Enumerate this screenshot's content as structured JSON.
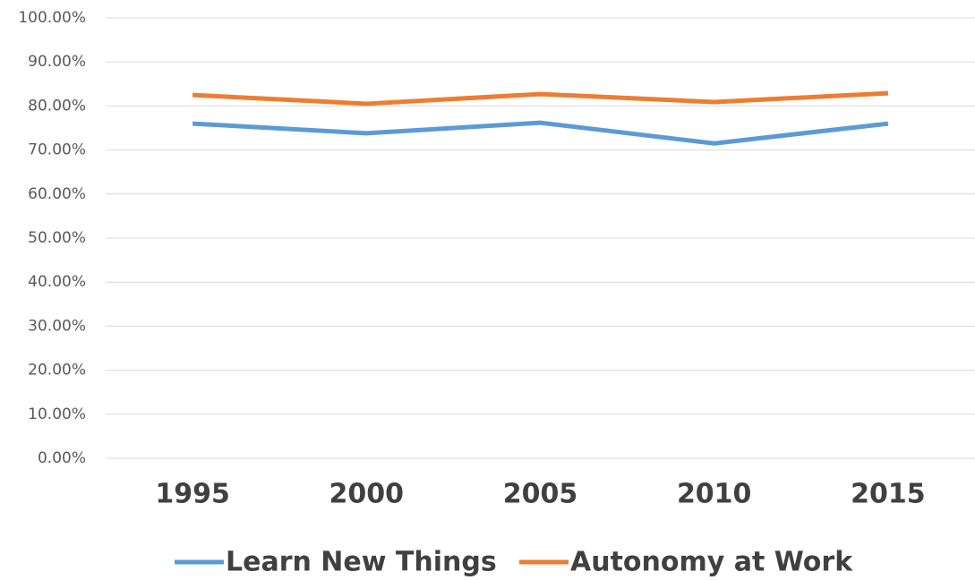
{
  "chart_data": {
    "type": "line",
    "categories": [
      "1995",
      "2000",
      "2005",
      "2010",
      "2015"
    ],
    "series": [
      {
        "name": "Learn New Things",
        "color": "#5b9bd5",
        "values": [
          76.0,
          73.8,
          76.2,
          71.5,
          76.0
        ]
      },
      {
        "name": "Autonomy at Work",
        "color": "#ed7d31",
        "values": [
          82.5,
          80.5,
          82.7,
          80.9,
          82.9
        ]
      }
    ],
    "ylim": [
      0,
      100
    ],
    "yticks": [
      {
        "value": 0,
        "label": "0.00%"
      },
      {
        "value": 10,
        "label": "10.00%"
      },
      {
        "value": 20,
        "label": "20.00%"
      },
      {
        "value": 30,
        "label": "30.00%"
      },
      {
        "value": 40,
        "label": "40.00%"
      },
      {
        "value": 50,
        "label": "50.00%"
      },
      {
        "value": 60,
        "label": "60.00%"
      },
      {
        "value": 70,
        "label": "70.00%"
      },
      {
        "value": 80,
        "label": "80.00%"
      },
      {
        "value": 90,
        "label": "90.00%"
      },
      {
        "value": 100,
        "label": "100.00%"
      }
    ],
    "grid": true,
    "legend": "bottom"
  }
}
